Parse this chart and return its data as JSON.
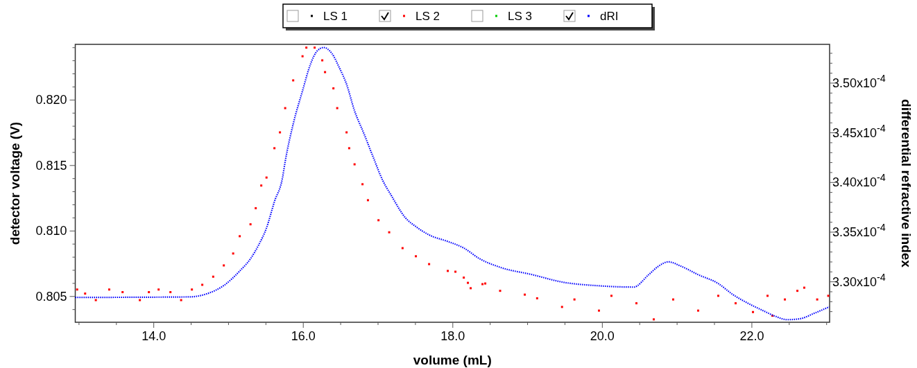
{
  "chart_data": {
    "type": "scatter",
    "xlabel": "volume (mL)",
    "ylabel": "detector voltage (V)",
    "y2label": "differential refractive index",
    "xlim": [
      12.95,
      23.04
    ],
    "xticks": [
      {
        "value": 13.0,
        "label": null
      },
      {
        "value": 13.5,
        "label": null
      },
      {
        "value": 14.0,
        "label": "14.0"
      },
      {
        "value": 14.5,
        "label": null
      },
      {
        "value": 15.0,
        "label": null
      },
      {
        "value": 15.5,
        "label": null
      },
      {
        "value": 16.0,
        "label": "16.0"
      },
      {
        "value": 16.5,
        "label": null
      },
      {
        "value": 17.0,
        "label": null
      },
      {
        "value": 17.5,
        "label": null
      },
      {
        "value": 18.0,
        "label": "18.0"
      },
      {
        "value": 18.5,
        "label": null
      },
      {
        "value": 19.0,
        "label": null
      },
      {
        "value": 19.5,
        "label": null
      },
      {
        "value": 20.0,
        "label": "20.0"
      },
      {
        "value": 20.5,
        "label": null
      },
      {
        "value": 21.0,
        "label": null
      },
      {
        "value": 21.5,
        "label": null
      },
      {
        "value": 22.0,
        "label": "22.0"
      },
      {
        "value": 22.5,
        "label": null
      },
      {
        "value": 23.0,
        "label": null
      }
    ],
    "ylim": [
      0.80303,
      0.82425
    ],
    "yticks": [
      {
        "value": 0.804,
        "label": null
      },
      {
        "value": 0.805,
        "label": "0.805"
      },
      {
        "value": 0.806,
        "label": null
      },
      {
        "value": 0.807,
        "label": null
      },
      {
        "value": 0.808,
        "label": null
      },
      {
        "value": 0.809,
        "label": null
      },
      {
        "value": 0.81,
        "label": "0.810"
      },
      {
        "value": 0.811,
        "label": null
      },
      {
        "value": 0.812,
        "label": null
      },
      {
        "value": 0.813,
        "label": null
      },
      {
        "value": 0.814,
        "label": null
      },
      {
        "value": 0.815,
        "label": "0.815"
      },
      {
        "value": 0.816,
        "label": null
      },
      {
        "value": 0.817,
        "label": null
      },
      {
        "value": 0.818,
        "label": null
      },
      {
        "value": 0.819,
        "label": null
      },
      {
        "value": 0.82,
        "label": "0.820"
      },
      {
        "value": 0.821,
        "label": null
      },
      {
        "value": 0.822,
        "label": null
      },
      {
        "value": 0.823,
        "label": null
      },
      {
        "value": 0.824,
        "label": null
      }
    ],
    "y2lim": [
      0.00032593,
      0.0003539
    ],
    "y2ticks": [
      {
        "value": 0.000327,
        "label": null
      },
      {
        "value": 0.000328,
        "label": null
      },
      {
        "value": 0.000329,
        "label": null
      },
      {
        "value": 0.00033,
        "label": "3.30x10$^{-4}$"
      },
      {
        "value": 0.000331,
        "label": null
      },
      {
        "value": 0.000332,
        "label": null
      },
      {
        "value": 0.000333,
        "label": null
      },
      {
        "value": 0.000334,
        "label": null
      },
      {
        "value": 0.000335,
        "label": "3.35x10$^{-4}$"
      },
      {
        "value": 0.000336,
        "label": null
      },
      {
        "value": 0.000337,
        "label": null
      },
      {
        "value": 0.000338,
        "label": null
      },
      {
        "value": 0.000339,
        "label": null
      },
      {
        "value": 0.00034,
        "label": "3.40x10$^{-4}$"
      },
      {
        "value": 0.000341,
        "label": null
      },
      {
        "value": 0.000342,
        "label": null
      },
      {
        "value": 0.000343,
        "label": null
      },
      {
        "value": 0.000344,
        "label": null
      },
      {
        "value": 0.000345,
        "label": "3.45x10$^{-4}$"
      },
      {
        "value": 0.000346,
        "label": null
      },
      {
        "value": 0.000347,
        "label": null
      },
      {
        "value": 0.000348,
        "label": null
      },
      {
        "value": 0.000349,
        "label": null
      },
      {
        "value": 0.00035,
        "label": "3.50x10$^{-4}$"
      },
      {
        "value": 0.000351,
        "label": null
      },
      {
        "value": 0.000352,
        "label": null
      },
      {
        "value": 0.000353,
        "label": null
      }
    ],
    "legend": "top",
    "series": [
      {
        "name": "LS 1",
        "color": "#000000"
      },
      {
        "name": "LS 2",
        "color": "#ff0000",
        "marker": "square",
        "x": [
          12.975,
          13.082,
          13.225,
          13.404,
          13.583,
          13.814,
          13.935,
          14.065,
          14.223,
          14.366,
          14.51,
          14.649,
          14.795,
          14.937,
          15.062,
          15.15,
          15.294,
          15.364,
          15.438,
          15.508,
          15.614,
          15.688,
          15.758,
          15.865,
          15.99,
          16.041,
          16.152,
          16.254,
          16.291,
          16.403,
          16.454,
          16.579,
          16.614,
          16.686,
          16.792,
          16.865,
          17.006,
          17.149,
          17.328,
          17.506,
          17.683,
          17.933,
          18.035,
          18.147,
          18.202,
          18.239,
          18.397,
          18.434,
          18.633,
          18.963,
          19.128,
          19.461,
          19.627,
          19.955,
          20.122,
          20.456,
          20.688,
          20.948,
          21.282,
          21.551,
          21.783,
          22.015,
          22.21,
          22.275,
          22.442,
          22.609,
          22.701,
          22.874,
          23.022
        ],
        "values": [
          0.80553,
          0.80522,
          0.80472,
          0.80553,
          0.80533,
          0.80472,
          0.80533,
          0.80553,
          0.80533,
          0.80472,
          0.80553,
          0.80589,
          0.80651,
          0.80737,
          0.80828,
          0.8096,
          0.81051,
          0.81174,
          0.81347,
          0.81408,
          0.81632,
          0.81753,
          0.81938,
          0.8215,
          0.82334,
          0.824,
          0.824,
          0.82303,
          0.82213,
          0.82089,
          0.81938,
          0.81753,
          0.81632,
          0.81509,
          0.81357,
          0.81235,
          0.81082,
          0.8099,
          0.80869,
          0.80807,
          0.80747,
          0.80695,
          0.80689,
          0.80644,
          0.80604,
          0.80563,
          0.80594,
          0.80599,
          0.80543,
          0.80514,
          0.80486,
          0.8042,
          0.80477,
          0.80392,
          0.80505,
          0.80448,
          0.80325,
          0.80477,
          0.80392,
          0.80505,
          0.80448,
          0.80381,
          0.80505,
          0.80353,
          0.80477,
          0.80543,
          0.80567,
          0.80477,
          0.80505
        ]
      },
      {
        "name": "LS 3",
        "color": "#00cc00"
      },
      {
        "name": "dRI",
        "color": "#0000ff",
        "type": "line",
        "line_style": "dotted",
        "axis": "y2",
        "x": [
          12.95,
          14.473,
          14.724,
          14.937,
          15.15,
          15.294,
          15.401,
          15.508,
          15.614,
          15.723,
          15.758,
          15.865,
          15.99,
          16.096,
          16.186,
          16.273,
          16.384,
          16.486,
          16.579,
          16.686,
          16.811,
          16.936,
          17.061,
          17.182,
          17.364,
          17.506,
          17.683,
          17.933,
          18.147,
          18.36,
          18.633,
          19.064,
          19.461,
          19.955,
          20.419,
          20.62,
          20.753,
          20.883,
          21.05,
          21.282,
          21.548,
          21.746,
          21.946,
          22.145,
          22.312,
          22.476,
          22.642,
          22.84,
          23.035
        ],
        "values": [
          0.00032843,
          0.00032848,
          0.00032883,
          0.00032963,
          0.00033109,
          0.00033232,
          0.00033368,
          0.00033542,
          0.00033807,
          0.00034051,
          0.00034211,
          0.00034588,
          0.00034923,
          0.0003519,
          0.00035324,
          0.00035358,
          0.00035297,
          0.00035149,
          0.00034989,
          0.0003472,
          0.00034492,
          0.00034253,
          0.00034023,
          0.00033863,
          0.00033646,
          0.00033556,
          0.00033472,
          0.00033406,
          0.0003334,
          0.00033232,
          0.00033146,
          0.00033072,
          0.00032998,
          0.0003296,
          0.00032947,
          0.00033072,
          0.00033158,
          0.00033201,
          0.00033158,
          0.00033072,
          0.00032984,
          0.00032872,
          0.00032785,
          0.00032712,
          0.00032654,
          0.00032619,
          0.00032628,
          0.00032685,
          0.00032748
        ]
      }
    ]
  }
}
